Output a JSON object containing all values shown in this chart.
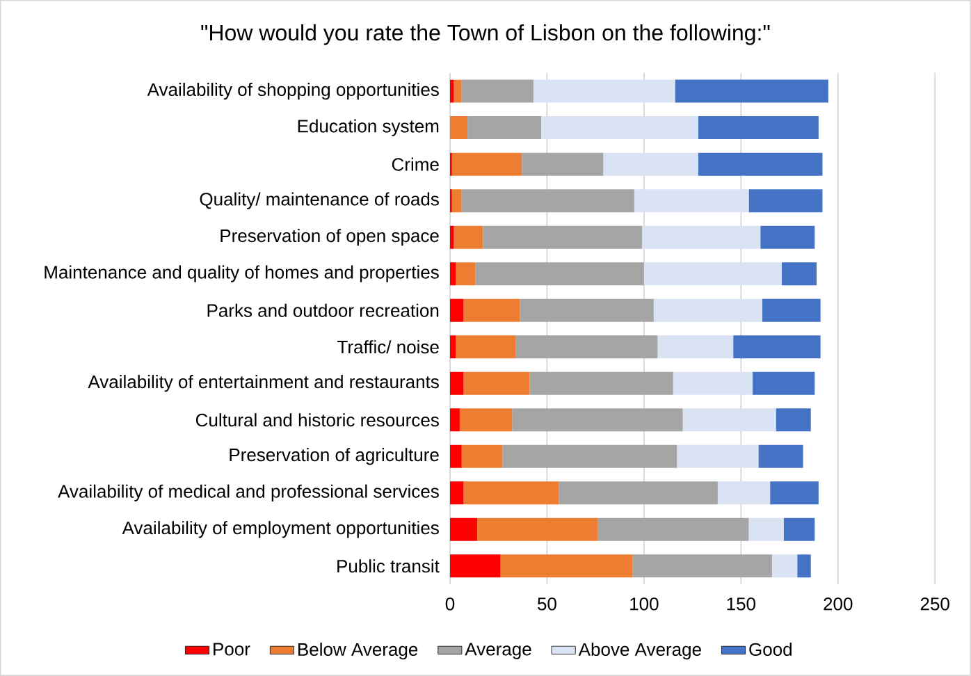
{
  "chart_data": {
    "type": "bar",
    "orientation": "horizontal",
    "stacked": true,
    "title": "\"How would you rate the Town of Lisbon on the following:\"",
    "categories": [
      "Availability of shopping opportunities",
      "Education system",
      "Crime",
      "Quality/ maintenance of roads",
      "Preservation of open space",
      "Maintenance and quality of homes and properties",
      "Parks and outdoor recreation",
      "Traffic/ noise",
      "Availability of entertainment and restaurants",
      "Cultural and historic resources",
      "Preservation of agriculture",
      "Availability of medical and professional services",
      "Availability of employment opportunities",
      "Public transit"
    ],
    "series": [
      {
        "name": "Poor",
        "color": "#ff0000",
        "values": [
          2,
          0,
          1,
          1,
          2,
          3,
          7,
          3,
          7,
          5,
          6,
          7,
          14,
          26
        ]
      },
      {
        "name": "Below Average",
        "color": "#ed7d31",
        "values": [
          4,
          9,
          36,
          5,
          15,
          10,
          29,
          31,
          34,
          27,
          21,
          49,
          62,
          68
        ]
      },
      {
        "name": "Average",
        "color": "#a5a5a5",
        "values": [
          37,
          38,
          42,
          89,
          82,
          87,
          69,
          73,
          74,
          88,
          90,
          82,
          78,
          72
        ]
      },
      {
        "name": "Above Average",
        "color": "#dae3f3",
        "values": [
          73,
          81,
          49,
          59,
          61,
          71,
          56,
          39,
          41,
          48,
          42,
          27,
          18,
          13
        ]
      },
      {
        "name": "Good",
        "color": "#4472c4",
        "values": [
          79,
          62,
          64,
          38,
          28,
          18,
          30,
          45,
          32,
          18,
          23,
          25,
          16,
          7
        ]
      }
    ],
    "xlim": [
      0,
      250
    ],
    "xticks": [
      0,
      50,
      100,
      150,
      200,
      250
    ],
    "grid": "x",
    "legend": "bottom"
  }
}
